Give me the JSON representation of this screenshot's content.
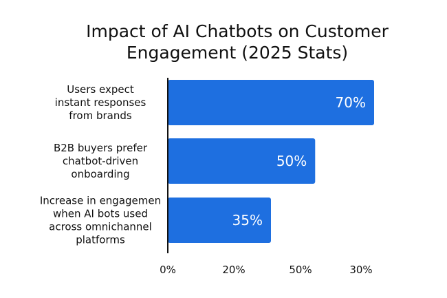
{
  "chart_data": {
    "type": "bar",
    "orientation": "horizontal",
    "title": "Impact of AI Chatbots on Customer\nEngagement (2025 Stats)",
    "categories": [
      [
        "Users expect",
        "instant responses",
        "from brands"
      ],
      [
        "B2B buyers prefer",
        "chatbot-driven",
        "onboarding"
      ],
      [
        "Increase in engagemen",
        "when AI bots used",
        "across omnichannel",
        "platforms"
      ]
    ],
    "values": [
      70,
      50,
      35
    ],
    "data_labels": [
      "70%",
      "50%",
      "35%"
    ],
    "x_ticks": [
      "0%",
      "20%",
      "50%",
      "30%"
    ],
    "xlim": [
      0,
      70
    ],
    "bar_color": "#1e6fe0",
    "grid": false,
    "legend": "none"
  }
}
